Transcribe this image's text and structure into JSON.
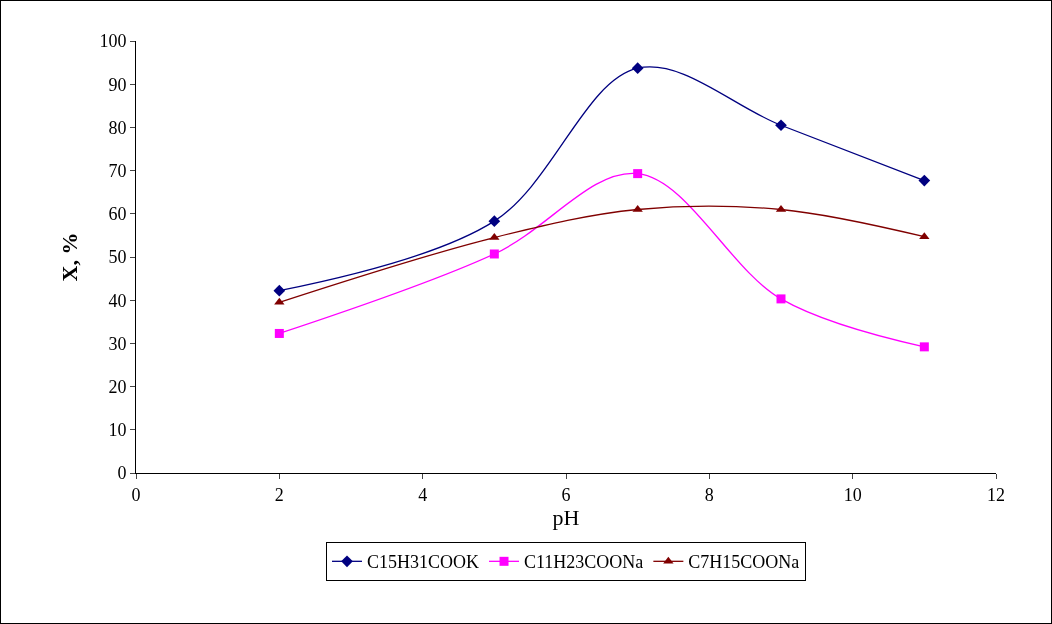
{
  "chart_data": {
    "type": "line",
    "xlabel": "pH",
    "ylabel": "X, %",
    "x": [
      2,
      5,
      7,
      9,
      11
    ],
    "series": [
      {
        "name": "C15H31COOK",
        "color": "#000080",
        "marker": "diamond",
        "values": [
          42.2,
          58.3,
          93.7,
          80.5,
          67.7
        ]
      },
      {
        "name": "C11H23COONa",
        "color": "#ff00ff",
        "marker": "square",
        "values": [
          32.3,
          50.7,
          69.3,
          40.3,
          29.2
        ]
      },
      {
        "name": "C7H15COONa",
        "color": "#800000",
        "marker": "triangle",
        "values": [
          39.5,
          54.5,
          61,
          61,
          54.7
        ]
      }
    ],
    "xlim": [
      0,
      12
    ],
    "xticks": [
      0,
      2,
      4,
      6,
      8,
      10,
      12
    ],
    "ylim": [
      0,
      100
    ],
    "yticks": [
      0,
      10,
      20,
      30,
      40,
      50,
      60,
      70,
      80,
      90,
      100
    ],
    "grid": false,
    "legend": "bottom",
    "line_style": "solid"
  }
}
